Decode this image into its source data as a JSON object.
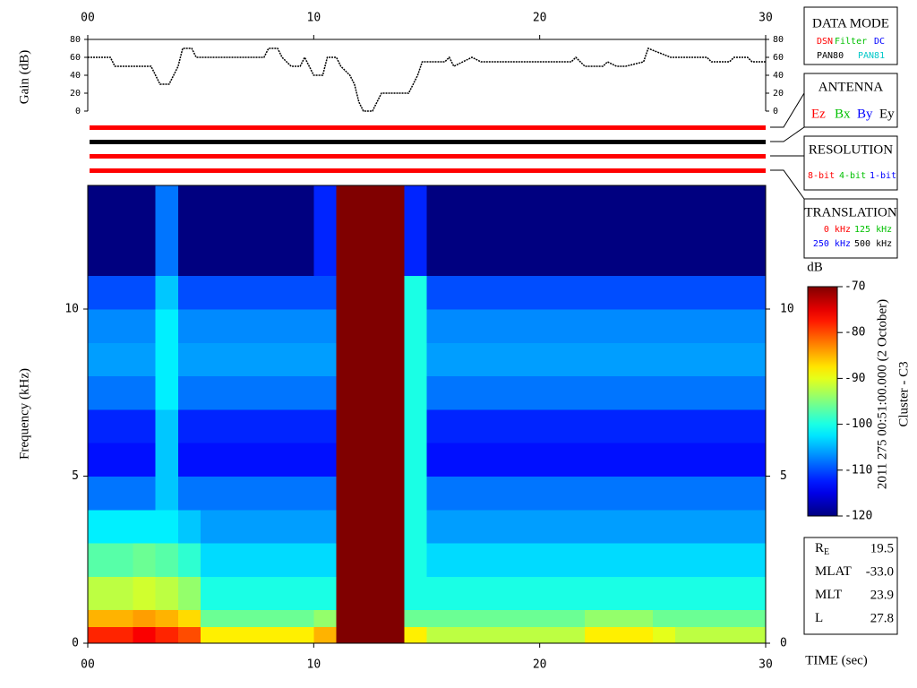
{
  "chart_data": [
    {
      "type": "line",
      "y_label": "Gain (dB)",
      "color": "#000000",
      "x": [
        0,
        1,
        1.2,
        2.8,
        3,
        3.2,
        3.6,
        3.8,
        4,
        4.2,
        4.6,
        4.8,
        7.8,
        8,
        8.4,
        8.6,
        9,
        9.4,
        9.6,
        9.8,
        10,
        10.4,
        10.6,
        11,
        11.2,
        11.6,
        11.8,
        12,
        12.2,
        12.6,
        13,
        14.2,
        14.4,
        14.6,
        14.8,
        15.8,
        16,
        16.2,
        16.6,
        17,
        17.4,
        21.4,
        21.6,
        22,
        22.8,
        23,
        23.4,
        23.8,
        24.6,
        24.8,
        25.8,
        27.4,
        27.6,
        28.4,
        28.6,
        29.2,
        29.4,
        30
      ],
      "values": [
        60,
        60,
        50,
        50,
        40,
        30,
        30,
        40,
        50,
        70,
        70,
        60,
        60,
        70,
        70,
        60,
        50,
        50,
        60,
        50,
        40,
        40,
        60,
        60,
        50,
        40,
        30,
        10,
        0,
        0,
        20,
        20,
        30,
        40,
        55,
        55,
        60,
        50,
        55,
        60,
        55,
        55,
        60,
        50,
        50,
        55,
        50,
        50,
        55,
        70,
        60,
        60,
        55,
        55,
        60,
        60,
        55,
        55
      ],
      "xlim": [
        0,
        30
      ],
      "xticks": [
        {
          "value": 0,
          "label": "00"
        },
        10,
        20,
        30
      ],
      "ylim": [
        0,
        80
      ],
      "yticks": [
        0,
        20,
        40,
        60,
        80
      ]
    },
    {
      "type": "heatmap",
      "x_label": "TIME (sec)",
      "y_label": "Frequency (kHz)",
      "z_label": "dB",
      "x_bins": [
        0,
        1,
        2,
        3,
        4,
        5,
        6,
        7,
        8,
        9,
        10,
        11,
        12,
        13,
        14,
        15,
        16,
        17,
        18,
        19,
        20,
        21,
        22,
        23,
        24,
        25,
        26,
        27,
        28,
        29,
        30
      ],
      "y_bins": [
        0,
        0.5,
        1,
        2,
        3,
        4,
        5,
        6,
        7,
        8,
        9,
        10,
        11,
        12,
        13.7
      ],
      "values": [
        [
          -78,
          -78,
          -76,
          -78,
          -80,
          -88,
          -88,
          -88,
          -88,
          -88,
          -85,
          -70,
          -70,
          -70,
          -88,
          -92,
          -92,
          -92,
          -92,
          -92,
          -92,
          -92,
          -88,
          -88,
          -88,
          -90,
          -92,
          -92,
          -92,
          -92
        ],
        [
          -85,
          -85,
          -84,
          -85,
          -87,
          -96,
          -96,
          -96,
          -96,
          -96,
          -94,
          -70,
          -70,
          -70,
          -96,
          -96,
          -96,
          -96,
          -96,
          -96,
          -96,
          -96,
          -94,
          -94,
          -94,
          -96,
          -96,
          -96,
          -96,
          -96
        ],
        [
          -92,
          -92,
          -91,
          -92,
          -94,
          -100,
          -100,
          -100,
          -100,
          -100,
          -100,
          -70,
          -70,
          -70,
          -100,
          -100,
          -100,
          -100,
          -100,
          -100,
          -100,
          -100,
          -100,
          -100,
          -100,
          -100,
          -100,
          -100,
          -100,
          -100
        ],
        [
          -97,
          -97,
          -96,
          -97,
          -99,
          -103,
          -103,
          -103,
          -103,
          -103,
          -103,
          -70,
          -70,
          -70,
          -100,
          -103,
          -103,
          -103,
          -103,
          -103,
          -103,
          -103,
          -103,
          -103,
          -103,
          -103,
          -103,
          -103,
          -103,
          -103
        ],
        [
          -102,
          -102,
          -102,
          -102,
          -104,
          -106,
          -106,
          -106,
          -106,
          -106,
          -106,
          -70,
          -70,
          -70,
          -100,
          -106,
          -106,
          -106,
          -106,
          -106,
          -106,
          -106,
          -106,
          -106,
          -106,
          -106,
          -106,
          -106,
          -106,
          -106
        ],
        [
          -108,
          -108,
          -108,
          -104,
          -108,
          -108,
          -108,
          -108,
          -108,
          -108,
          -108,
          -70,
          -70,
          -70,
          -100,
          -108,
          -108,
          -108,
          -108,
          -108,
          -108,
          -108,
          -108,
          -108,
          -108,
          -108,
          -108,
          -108,
          -108,
          -108
        ],
        [
          -113,
          -113,
          -113,
          -104,
          -113,
          -113,
          -113,
          -113,
          -113,
          -113,
          -113,
          -70,
          -70,
          -70,
          -100,
          -113,
          -113,
          -113,
          -113,
          -113,
          -113,
          -113,
          -113,
          -113,
          -113,
          -113,
          -113,
          -113,
          -113,
          -113
        ],
        [
          -112,
          -112,
          -112,
          -104,
          -112,
          -112,
          -112,
          -112,
          -112,
          -112,
          -112,
          -70,
          -70,
          -70,
          -100,
          -112,
          -112,
          -112,
          -112,
          -112,
          -112,
          -112,
          -112,
          -112,
          -112,
          -112,
          -112,
          -112,
          -112,
          -112
        ],
        [
          -108,
          -108,
          -108,
          -102,
          -108,
          -108,
          -108,
          -108,
          -108,
          -108,
          -108,
          -70,
          -70,
          -70,
          -100,
          -108,
          -108,
          -108,
          -108,
          -108,
          -108,
          -108,
          -108,
          -108,
          -108,
          -108,
          -108,
          -108,
          -108,
          -108
        ],
        [
          -106,
          -106,
          -106,
          -102,
          -106,
          -106,
          -106,
          -106,
          -106,
          -106,
          -106,
          -70,
          -70,
          -70,
          -100,
          -106,
          -106,
          -106,
          -106,
          -106,
          -106,
          -106,
          -106,
          -106,
          -106,
          -106,
          -106,
          -106,
          -106,
          -106
        ],
        [
          -107,
          -107,
          -107,
          -102,
          -107,
          -107,
          -107,
          -107,
          -107,
          -107,
          -107,
          -70,
          -70,
          -70,
          -100,
          -107,
          -107,
          -107,
          -107,
          -107,
          -107,
          -107,
          -107,
          -107,
          -107,
          -107,
          -107,
          -107,
          -107,
          -107
        ],
        [
          -110,
          -110,
          -110,
          -104,
          -110,
          -110,
          -110,
          -110,
          -110,
          -110,
          -110,
          -70,
          -70,
          -70,
          -100,
          -110,
          -110,
          -110,
          -110,
          -110,
          -110,
          -110,
          -110,
          -110,
          -110,
          -110,
          -110,
          -110,
          -110,
          -110
        ],
        [
          -120,
          -120,
          -120,
          -108,
          -120,
          -120,
          -120,
          -120,
          -120,
          -120,
          -112,
          -70,
          -70,
          -70,
          -112,
          -120,
          -120,
          -120,
          -120,
          -120,
          -120,
          -120,
          -120,
          -120,
          -120,
          -120,
          -120,
          -120,
          -120,
          -120
        ],
        [
          -120,
          -120,
          -120,
          -108,
          -120,
          -120,
          -120,
          -120,
          -120,
          -120,
          -112,
          -70,
          -70,
          -70,
          -112,
          -120,
          -120,
          -120,
          -120,
          -120,
          -120,
          -120,
          -120,
          -120,
          -120,
          -120,
          -120,
          -120,
          -120,
          -120
        ]
      ],
      "colormap": "jet",
      "xlim": [
        0,
        30
      ],
      "xticks": [
        {
          "value": 0,
          "label": "00"
        },
        10,
        20,
        30
      ],
      "ylim": [
        0,
        13.7
      ],
      "yticks": [
        0,
        5,
        10
      ],
      "zlim": [
        -120,
        -70
      ],
      "zticks": [
        -70,
        -80,
        -90,
        -100,
        -110,
        -120
      ],
      "date_label": "2011 275 00:51:00.000 (2 October)",
      "spacecraft": "Cluster - C3"
    }
  ],
  "side_panels": {
    "data_mode": {
      "title": "DATA MODE",
      "items": [
        "DSN",
        "Filter",
        "DC",
        "PAN80",
        "PAN81"
      ]
    },
    "antenna": {
      "title": "ANTENNA",
      "items": [
        "Ez",
        "Bx",
        "By",
        "Ey"
      ]
    },
    "resolution": {
      "title": "RESOLUTION",
      "items": [
        "8-bit",
        "4-bit",
        "1-bit"
      ]
    },
    "translation": {
      "title": "TRANSLATION",
      "items": [
        "0 kHz",
        "125 kHz",
        "250 kHz",
        "500 kHz"
      ]
    },
    "info": [
      {
        "label": "R",
        "sub": "E",
        "value": "19.5"
      },
      {
        "label": "MLAT",
        "value": "-33.0"
      },
      {
        "label": "MLT",
        "value": "23.9"
      },
      {
        "label": "L",
        "value": "27.8"
      }
    ]
  }
}
